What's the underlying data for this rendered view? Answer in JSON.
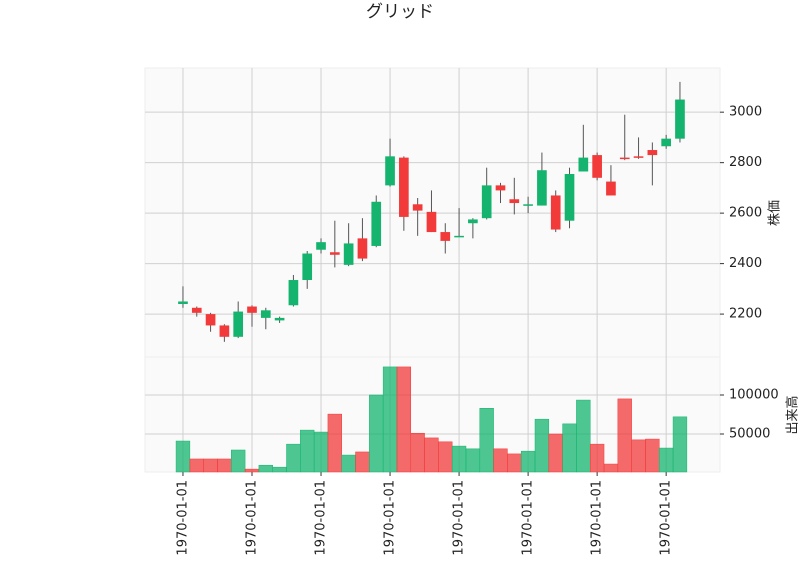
{
  "chart_data": {
    "type": "candlestick",
    "title": "グリッド",
    "ylabel": "株価",
    "volume_label": "出来高",
    "up_color": "#14b46e",
    "down_color": "#f23a3a",
    "grid": true,
    "xlim": [
      -2.75,
      38.9
    ],
    "xticks": [
      {
        "value": 0,
        "label": "1970-01-01"
      },
      {
        "value": 5,
        "label": "1970-01-01"
      },
      {
        "value": 10,
        "label": "1970-01-01"
      },
      {
        "value": 15,
        "label": "1970-01-01"
      },
      {
        "value": 20,
        "label": "1970-01-01"
      },
      {
        "value": 25,
        "label": "1970-01-01"
      },
      {
        "value": 30,
        "label": "1970-01-01"
      },
      {
        "value": 35,
        "label": "1970-01-01"
      }
    ],
    "ylim": [
      2030,
      3175
    ],
    "yticks": [
      2200,
      2400,
      2600,
      2800,
      3000
    ],
    "volume_ylim": [
      1300,
      148700
    ],
    "volume_yticks": [
      50000,
      100000
    ],
    "open": [
      2240,
      2225,
      2200,
      2155,
      2110,
      2230,
      2185,
      2175,
      2235,
      2335,
      2455,
      2445,
      2395,
      2500,
      2470,
      2710,
      2820,
      2635,
      2605,
      2525,
      2505,
      2560,
      2580,
      2710,
      2655,
      2630,
      2630,
      2670,
      2570,
      2765,
      2830,
      2725,
      2820,
      2825,
      2850,
      2865,
      2895
    ],
    "high": [
      2310,
      2230,
      2205,
      2160,
      2250,
      2235,
      2225,
      2190,
      2355,
      2450,
      2500,
      2570,
      2560,
      2580,
      2670,
      2895,
      2825,
      2660,
      2690,
      2560,
      2620,
      2580,
      2780,
      2720,
      2740,
      2665,
      2840,
      2690,
      2780,
      2950,
      2840,
      2790,
      2990,
      2900,
      2880,
      2910,
      3120
    ],
    "low": [
      2225,
      2190,
      2130,
      2090,
      2105,
      2150,
      2140,
      2165,
      2230,
      2300,
      2440,
      2385,
      2390,
      2410,
      2465,
      2705,
      2530,
      2510,
      2525,
      2440,
      2505,
      2500,
      2575,
      2640,
      2595,
      2600,
      2630,
      2525,
      2540,
      2765,
      2730,
      2670,
      2810,
      2815,
      2710,
      2855,
      2880
    ],
    "close": [
      2250,
      2205,
      2155,
      2110,
      2210,
      2205,
      2215,
      2185,
      2335,
      2440,
      2485,
      2435,
      2480,
      2420,
      2645,
      2825,
      2585,
      2610,
      2525,
      2490,
      2510,
      2575,
      2710,
      2690,
      2640,
      2635,
      2770,
      2535,
      2755,
      2820,
      2740,
      2670,
      2815,
      2820,
      2830,
      2895,
      3050
    ],
    "volume": [
      41000,
      18000,
      18000,
      18000,
      29500,
      5000,
      10000,
      7500,
      37000,
      55000,
      52500,
      75500,
      23000,
      27000,
      100000,
      136000,
      136000,
      51000,
      45000,
      40000,
      34500,
      31000,
      83000,
      31000,
      24500,
      28000,
      69000,
      50000,
      63000,
      93500,
      37000,
      11500,
      95000,
      42500,
      43500,
      32000,
      72000
    ]
  }
}
